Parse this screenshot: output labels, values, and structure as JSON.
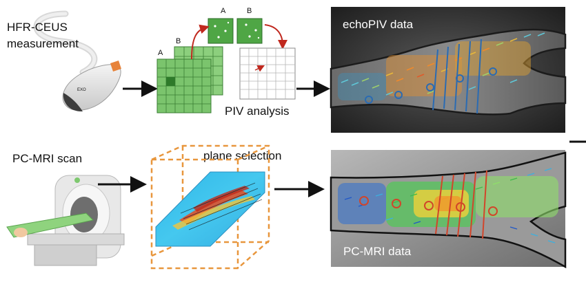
{
  "top_row": {
    "source_label_line1": "HFR-CEUS",
    "source_label_line2": "measurement",
    "frame_a_label": "A",
    "frame_b_label": "B",
    "small_a_label": "A",
    "small_b_label": "B",
    "analysis_label": "PIV analysis",
    "result_label": "echoPIV data"
  },
  "bottom_row": {
    "source_label": "PC-MRI scan",
    "selection_label": "plane selection",
    "result_label": "PC-MRI data"
  },
  "colors": {
    "grid_green": "#7bc46d",
    "grid_dark": "#3f8f3a",
    "arrow": "#111111",
    "red_arrow": "#c0281e",
    "echo_roi": "#2a6bb3",
    "mri_roi": "#d2452a",
    "box_orange": "#e8963c"
  }
}
